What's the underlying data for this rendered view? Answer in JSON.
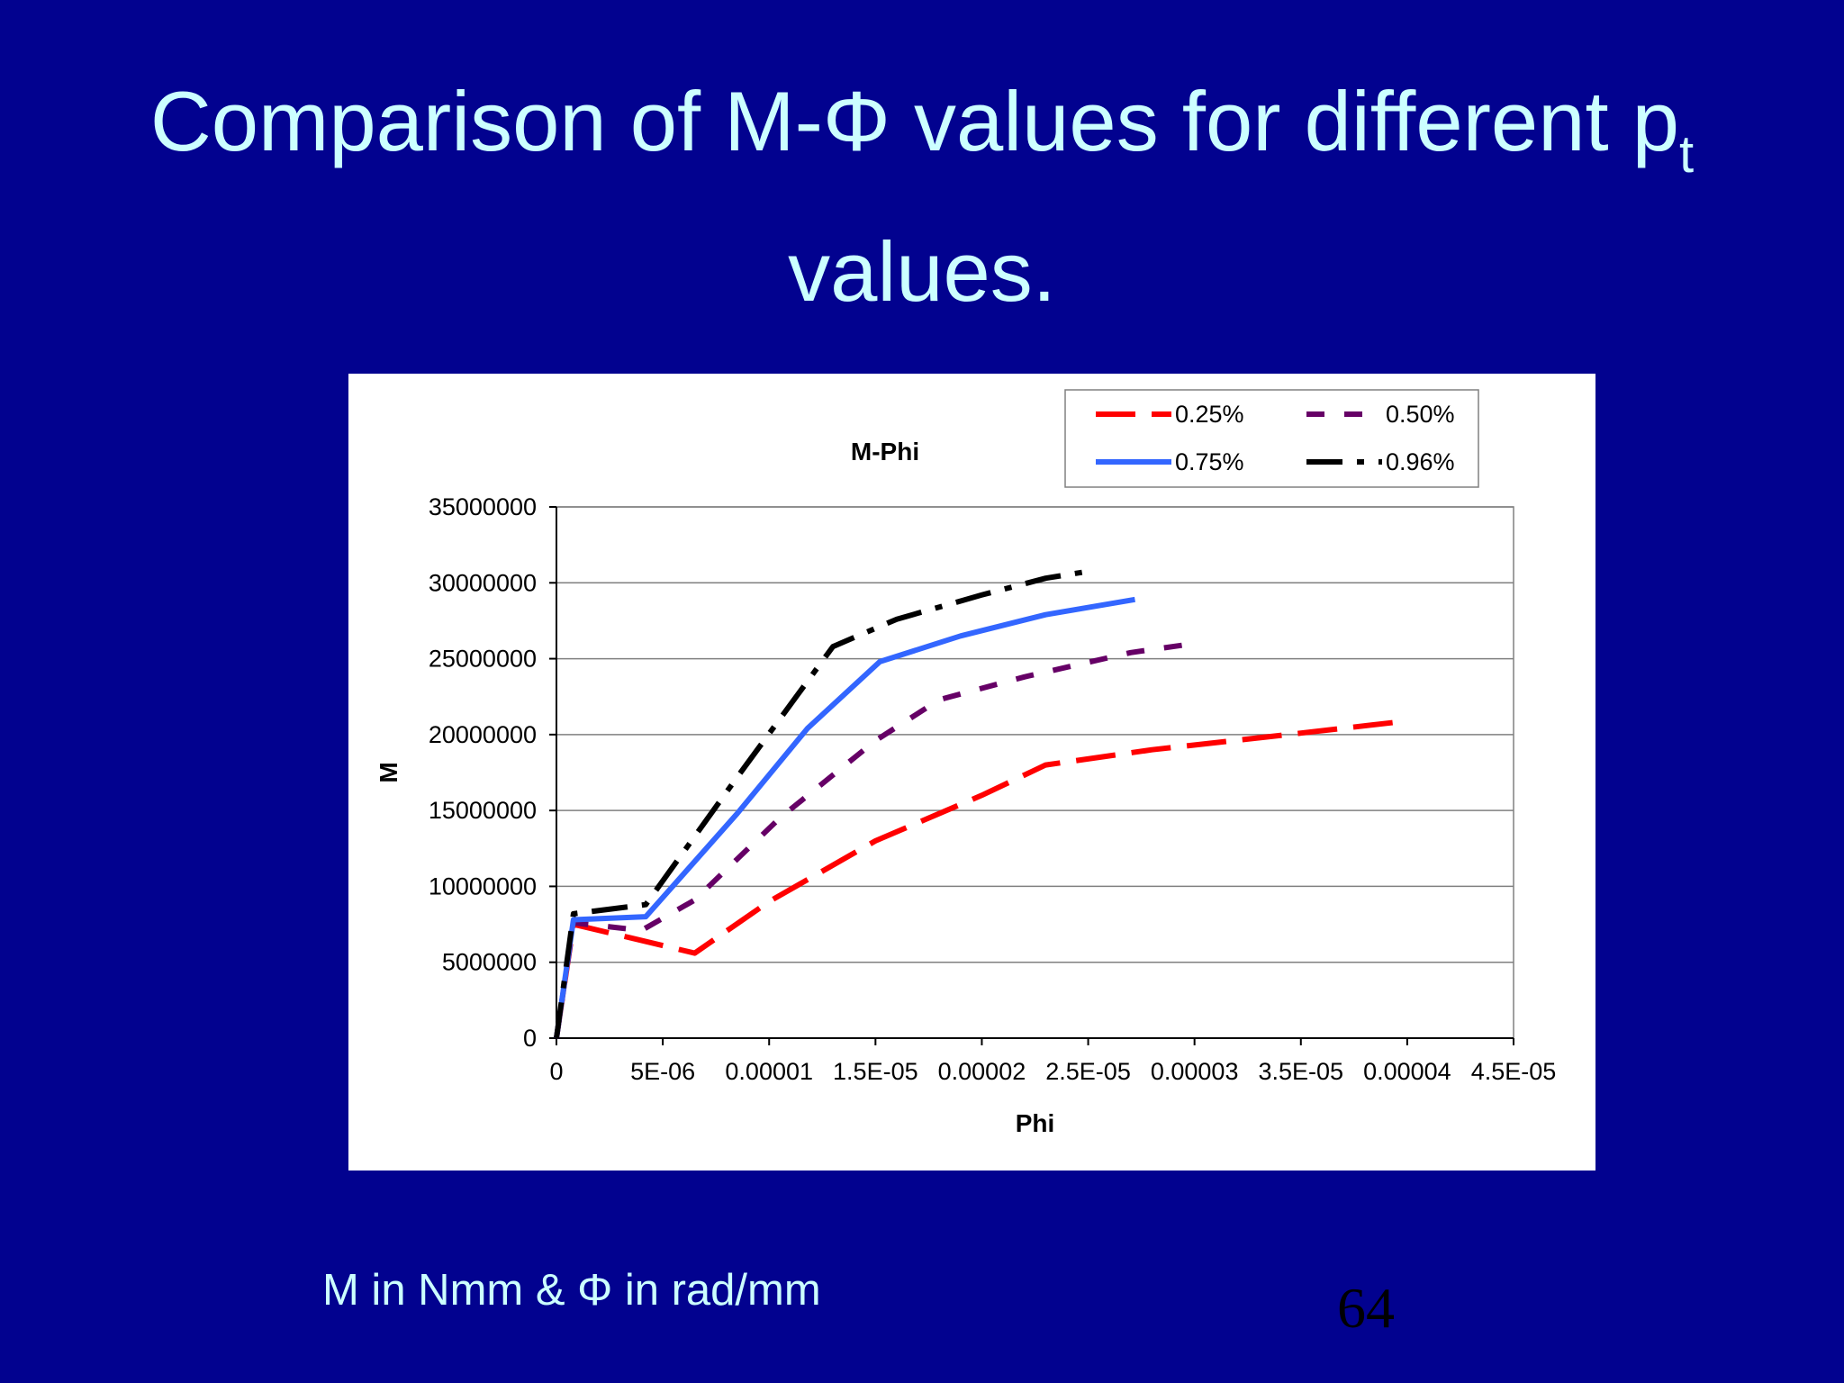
{
  "slide": {
    "title_main": "Comparison of M-Φ values for different p",
    "title_sub": "t",
    "title_line2": "values.",
    "footnote": "M in Nmm & Φ in rad/mm",
    "page_number": "64",
    "background_color": "#02028f",
    "text_color": "#ccffff"
  },
  "chart_data": {
    "type": "line",
    "title": "M-Phi",
    "xlabel": "Phi",
    "ylabel": "M",
    "xlim": [
      0,
      4.5e-05
    ],
    "ylim": [
      0,
      35000000
    ],
    "x_ticks": [
      0,
      5e-06,
      1e-05,
      1.5e-05,
      2e-05,
      2.5e-05,
      3e-05,
      3.5e-05,
      4e-05,
      4.5e-05
    ],
    "x_tick_labels": [
      "0",
      "5E-06",
      "0.00001",
      "1.5E-05",
      "0.00002",
      "2.5E-05",
      "0.00003",
      "3.5E-05",
      "0.00004",
      "4.5E-05"
    ],
    "y_ticks": [
      0,
      5000000,
      10000000,
      15000000,
      20000000,
      25000000,
      30000000,
      35000000
    ],
    "y_tick_labels": [
      "0",
      "5000000",
      "10000000",
      "15000000",
      "20000000",
      "25000000",
      "30000000",
      "35000000"
    ],
    "grid": "horizontal major gridlines",
    "legend_position": "top-right",
    "series": [
      {
        "name": "0.25%",
        "color": "#ff0000",
        "dash": "long-dash",
        "points": [
          [
            0,
            0
          ],
          [
            8e-07,
            7500000
          ],
          [
            3.5e-06,
            6600000
          ],
          [
            6.5e-06,
            5600000
          ],
          [
            1e-05,
            9000000
          ],
          [
            1.5e-05,
            13000000
          ],
          [
            2e-05,
            16000000
          ],
          [
            2.3e-05,
            18000000
          ],
          [
            2.8e-05,
            19000000
          ],
          [
            3.5e-05,
            20100000
          ],
          [
            4e-05,
            20900000
          ]
        ]
      },
      {
        "name": "0.50%",
        "color": "#660066",
        "dash": "dash",
        "points": [
          [
            0,
            0
          ],
          [
            8e-07,
            7600000
          ],
          [
            4e-06,
            7100000
          ],
          [
            6.5e-06,
            9100000
          ],
          [
            1.05e-05,
            14500000
          ],
          [
            1.5e-05,
            19600000
          ],
          [
            1.8e-05,
            22300000
          ],
          [
            2.2e-05,
            23800000
          ],
          [
            2.7e-05,
            25400000
          ],
          [
            3e-05,
            26000000
          ]
        ]
      },
      {
        "name": "0.75%",
        "color": "#3366ff",
        "dash": "solid",
        "points": [
          [
            0,
            0
          ],
          [
            8e-07,
            7800000
          ],
          [
            4.2e-06,
            8000000
          ],
          [
            8.5e-06,
            14800000
          ],
          [
            1.18e-05,
            20400000
          ],
          [
            1.52e-05,
            24800000
          ],
          [
            1.9e-05,
            26500000
          ],
          [
            2.3e-05,
            27900000
          ],
          [
            2.72e-05,
            28900000
          ]
        ]
      },
      {
        "name": "0.96%",
        "color": "#000000",
        "dash": "dash-dot",
        "points": [
          [
            0,
            0
          ],
          [
            8e-07,
            8200000
          ],
          [
            4.2e-06,
            8800000
          ],
          [
            8.5e-06,
            17200000
          ],
          [
            1.3e-05,
            25800000
          ],
          [
            1.6e-05,
            27600000
          ],
          [
            2e-05,
            29200000
          ],
          [
            2.3e-05,
            30300000
          ],
          [
            2.52e-05,
            30800000
          ]
        ]
      }
    ]
  }
}
